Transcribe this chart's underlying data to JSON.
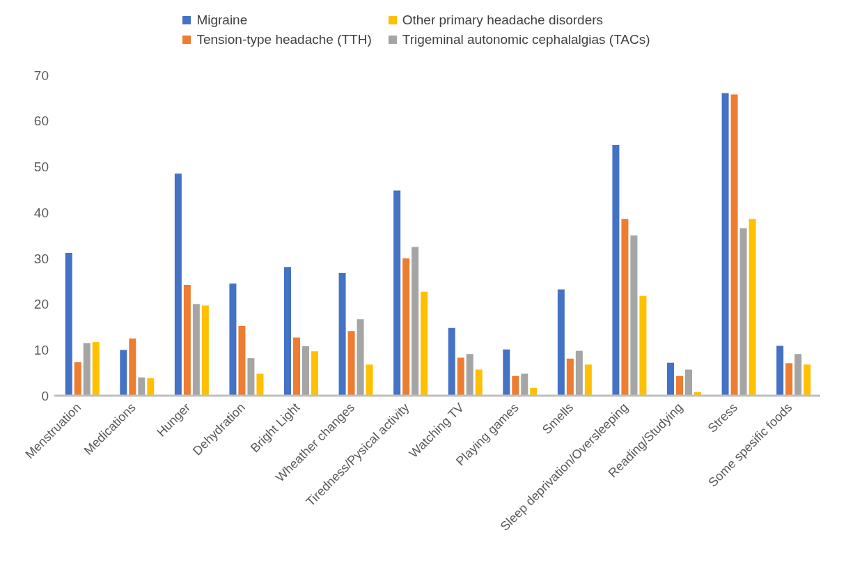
{
  "chart_data": {
    "type": "bar",
    "categories": [
      "Menstruation",
      "Medications",
      "Hunger",
      "Dehydration",
      "Bright Light",
      "Wheather changes",
      "Tiredness/Pysical activity",
      "Watching TV",
      "Playing games",
      "Smells",
      "Sleep deprivation/Oversleeping",
      "Reading/Studying",
      "Stress",
      "Some spesific foods"
    ],
    "series": [
      {
        "name": "Migraine",
        "color": "#4472c4",
        "values": [
          31.2,
          10,
          48.5,
          24.5,
          28.1,
          26.8,
          44.8,
          14.8,
          10.1,
          23.2,
          54.8,
          7.2,
          66.1,
          10.9
        ]
      },
      {
        "name": "Tension-type headache (TTH)",
        "color": "#ed7d31",
        "values": [
          7.3,
          12.5,
          24.2,
          15.2,
          12.7,
          14.1,
          30,
          8.3,
          4.3,
          8.1,
          38.6,
          4.3,
          65.8,
          7.1
        ]
      },
      {
        "name": "Trigeminal autonomic cephalalgias (TACs)",
        "color": "#a5a5a5",
        "values": [
          11.5,
          4,
          20,
          8.2,
          10.8,
          16.7,
          32.5,
          9.1,
          4.8,
          9.8,
          35,
          5.7,
          36.6,
          9.1
        ]
      },
      {
        "name": "Other primary headache disorders",
        "color": "#ffc000",
        "values": [
          11.7,
          3.8,
          19.7,
          4.8,
          9.7,
          6.8,
          22.7,
          5.7,
          1.7,
          6.8,
          21.8,
          0.8,
          38.6,
          6.8
        ]
      }
    ],
    "ylim": [
      0,
      70
    ],
    "yticks": [
      0,
      10,
      20,
      30,
      40,
      50,
      60,
      70
    ],
    "grid": false,
    "legend": "top"
  }
}
